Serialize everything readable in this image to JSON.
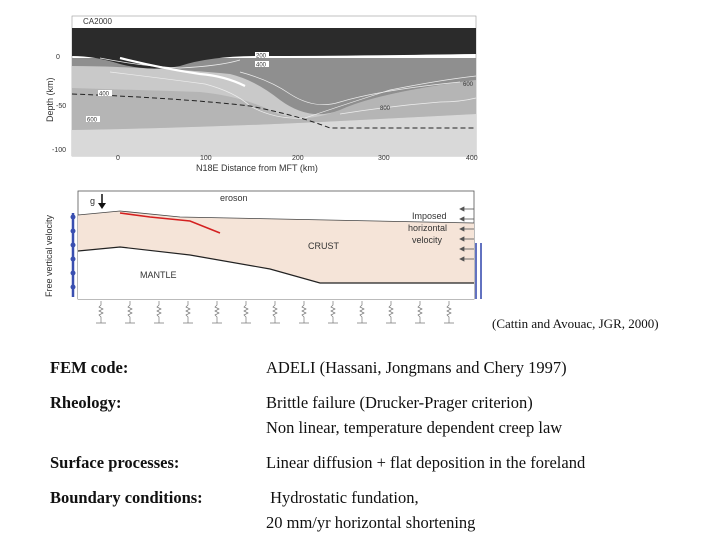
{
  "top_figure": {
    "tag": "CA2000",
    "y_axis_label": "Depth (km)",
    "y_ticks": [
      "0",
      "-50",
      "-100"
    ],
    "x_ticks": [
      "0",
      "100",
      "200",
      "300",
      "400"
    ],
    "x_axis_label": "N18E Distance from MFT (km)",
    "contour_labels": [
      "200",
      "400",
      "400",
      "600",
      "600",
      "800"
    ]
  },
  "bottom_figure": {
    "y_axis_label": "Free vertical velocity",
    "gravity_label": "g",
    "erosion_label": "eroson",
    "crust_label": "CRUST",
    "mantle_label": "MANTLE",
    "imposed_label": [
      "Imposed",
      "horizontal",
      "velocity"
    ]
  },
  "citation": "(Cattin and Avouac, JGR,  2000)",
  "rows": [
    {
      "key": "FEM code:",
      "lines": [
        "ADELI (Hassani, Jongmans and Chery 1997)"
      ]
    },
    {
      "key": "Rheology:",
      "lines": [
        "Brittle failure (Drucker-Prager criterion)",
        "Non linear, temperature dependent creep law"
      ]
    },
    {
      "key": "Surface processes:",
      "lines": [
        "Linear diffusion + flat deposition in the foreland"
      ]
    },
    {
      "key": "Boundary conditions:",
      "lines": [
        " Hydrostatic fundation,",
        "20 mm/yr horizontal shortening"
      ]
    }
  ]
}
